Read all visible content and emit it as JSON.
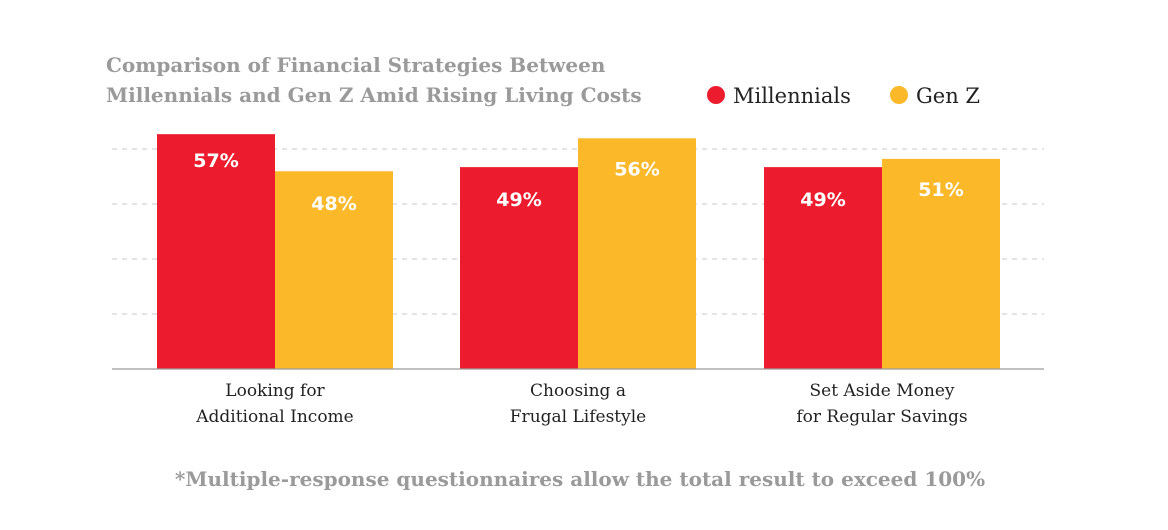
{
  "chart_data": {
    "type": "bar",
    "title_lines": [
      "Comparison of Financial Strategies Between",
      "Millennials and Gen Z Amid Rising Living Costs"
    ],
    "categories": [
      [
        "Looking for",
        "Additional Income"
      ],
      [
        "Choosing a",
        "Frugal Lifestyle"
      ],
      [
        "Set Aside Money",
        "for Regular Savings"
      ]
    ],
    "series": [
      {
        "name": "Millennials",
        "color": "#ec1c2e",
        "values": [
          57,
          49,
          49
        ],
        "labels": [
          "57%",
          "49%",
          "49%"
        ]
      },
      {
        "name": "Gen Z",
        "color": "#fbb829",
        "values": [
          48,
          56,
          51
        ],
        "labels": [
          "48%",
          "56%",
          "51%"
        ]
      }
    ],
    "ylim": [
      0,
      60
    ],
    "grid": true,
    "legend_position": "top-right",
    "footnote": "*Multiple-response questionnaires allow the total result to exceed 100%"
  }
}
